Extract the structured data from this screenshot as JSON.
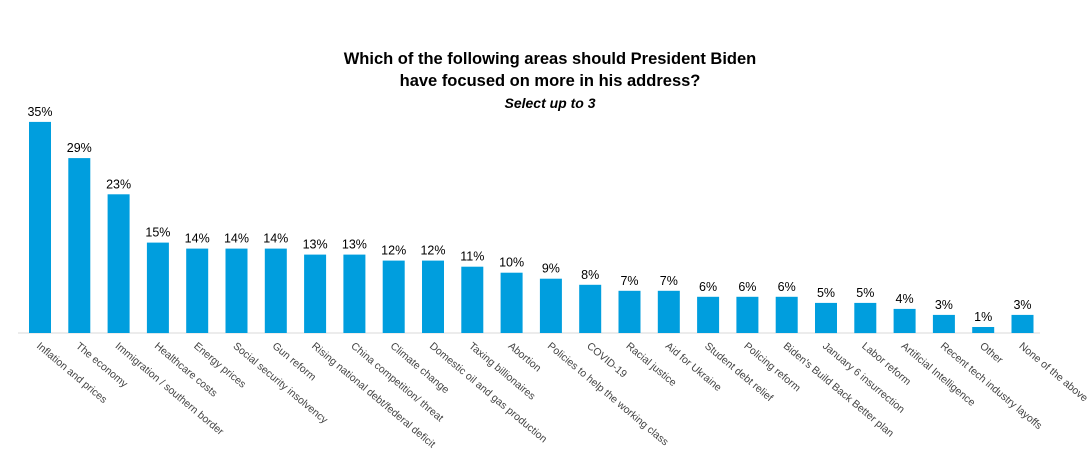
{
  "title": {
    "line1": "Which of the following areas should President Biden",
    "line2": "have focused on more in his address?",
    "subtitle": "Select up to 3"
  },
  "colors": {
    "bar": "#009ede",
    "baseline": "#d9d9d9"
  },
  "chart_data": {
    "type": "bar",
    "title": "Which of the following areas should President Biden have focused on more in his address?",
    "subtitle": "Select up to 3",
    "categories": [
      "Inflation and prices",
      "The economy",
      "Immigration / southern border",
      "Healthcare costs",
      "Energy prices",
      "Social security insolvency",
      "Gun reform",
      "Rising national debt/federal deficit",
      "China competition/ threat",
      "Climate change",
      "Domestic oil and gas production",
      "Taxing billionaires",
      "Abortion",
      "Policies to help the working class",
      "COVID-19",
      "Racial justice",
      "Aid for Ukraine",
      "Student debt relief",
      "Policing reform",
      "Biden's Build Back Better plan",
      "January 6 insurrection",
      "Labor reform",
      "Artificial Intelligence",
      "Recent tech industry layoffs",
      "Other",
      "None of the above"
    ],
    "values": [
      35,
      29,
      23,
      15,
      14,
      14,
      14,
      13,
      13,
      12,
      12,
      11,
      10,
      9,
      8,
      7,
      7,
      6,
      6,
      6,
      5,
      5,
      4,
      3,
      1,
      3
    ],
    "value_suffix": "%",
    "xlabel": "",
    "ylabel": "",
    "ylim": [
      0,
      35
    ],
    "grid": false,
    "legend": "none"
  }
}
